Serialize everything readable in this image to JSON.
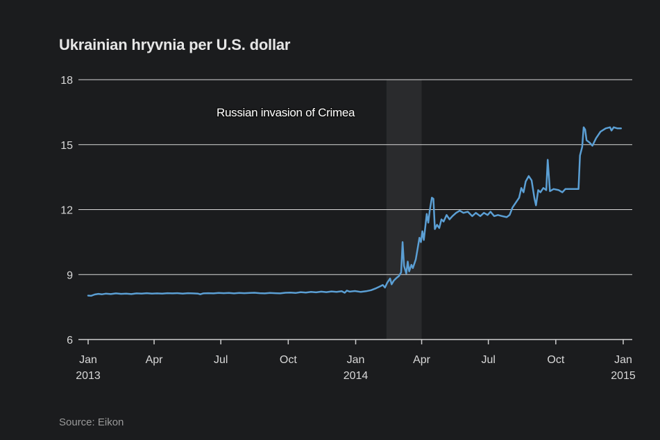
{
  "chart_data": {
    "type": "line",
    "title": "Ukrainian hryvnia per U.S. dollar",
    "source": "Source: Eikon",
    "ylim": [
      6,
      18
    ],
    "y_ticks": [
      {
        "value": 6,
        "label": "6"
      },
      {
        "value": 9,
        "label": "9"
      },
      {
        "value": 12,
        "label": "12"
      },
      {
        "value": 15,
        "label": "15"
      },
      {
        "value": 18,
        "label": "18"
      }
    ],
    "xlim": [
      "2013-01-01",
      "2015-01-01"
    ],
    "x_ticks": [
      {
        "date": "2013-01-01",
        "label": "Jan",
        "sublabel": "2013"
      },
      {
        "date": "2013-04-01",
        "label": "Apr",
        "sublabel": ""
      },
      {
        "date": "2013-07-01",
        "label": "Jul",
        "sublabel": ""
      },
      {
        "date": "2013-10-01",
        "label": "Oct",
        "sublabel": ""
      },
      {
        "date": "2014-01-01",
        "label": "Jan",
        "sublabel": "2014"
      },
      {
        "date": "2014-04-01",
        "label": "Apr",
        "sublabel": ""
      },
      {
        "date": "2014-07-01",
        "label": "Jul",
        "sublabel": ""
      },
      {
        "date": "2014-10-01",
        "label": "Oct",
        "sublabel": ""
      },
      {
        "date": "2015-01-01",
        "label": "Jan",
        "sublabel": "2015"
      }
    ],
    "grid": true,
    "line_color": "#5b9fd4",
    "annotation": {
      "label": "Russian invasion of Crimea",
      "start": "2014-02-12",
      "end": "2014-04-01",
      "band_color": "#2a2b2d"
    },
    "series": [
      {
        "points": [
          [
            "2013-01-01",
            8.03
          ],
          [
            "2013-01-05",
            8.02
          ],
          [
            "2013-01-10",
            8.08
          ],
          [
            "2013-01-15",
            8.11
          ],
          [
            "2013-01-20",
            8.09
          ],
          [
            "2013-01-25",
            8.12
          ],
          [
            "2013-02-01",
            8.1
          ],
          [
            "2013-02-08",
            8.13
          ],
          [
            "2013-02-15",
            8.11
          ],
          [
            "2013-02-22",
            8.12
          ],
          [
            "2013-03-01",
            8.1
          ],
          [
            "2013-03-08",
            8.13
          ],
          [
            "2013-03-15",
            8.12
          ],
          [
            "2013-03-22",
            8.14
          ],
          [
            "2013-03-29",
            8.12
          ],
          [
            "2013-04-05",
            8.13
          ],
          [
            "2013-04-12",
            8.12
          ],
          [
            "2013-04-19",
            8.14
          ],
          [
            "2013-04-26",
            8.13
          ],
          [
            "2013-05-03",
            8.14
          ],
          [
            "2013-05-10",
            8.12
          ],
          [
            "2013-05-17",
            8.14
          ],
          [
            "2013-05-24",
            8.13
          ],
          [
            "2013-05-31",
            8.12
          ],
          [
            "2013-06-03",
            8.09
          ],
          [
            "2013-06-07",
            8.13
          ],
          [
            "2013-06-14",
            8.14
          ],
          [
            "2013-06-21",
            8.13
          ],
          [
            "2013-06-28",
            8.15
          ],
          [
            "2013-07-05",
            8.14
          ],
          [
            "2013-07-12",
            8.15
          ],
          [
            "2013-07-19",
            8.13
          ],
          [
            "2013-07-26",
            8.15
          ],
          [
            "2013-08-02",
            8.14
          ],
          [
            "2013-08-09",
            8.15
          ],
          [
            "2013-08-16",
            8.16
          ],
          [
            "2013-08-23",
            8.14
          ],
          [
            "2013-08-30",
            8.13
          ],
          [
            "2013-09-06",
            8.15
          ],
          [
            "2013-09-13",
            8.14
          ],
          [
            "2013-09-20",
            8.13
          ],
          [
            "2013-09-27",
            8.16
          ],
          [
            "2013-10-04",
            8.17
          ],
          [
            "2013-10-11",
            8.15
          ],
          [
            "2013-10-18",
            8.19
          ],
          [
            "2013-10-25",
            8.17
          ],
          [
            "2013-11-01",
            8.2
          ],
          [
            "2013-11-08",
            8.18
          ],
          [
            "2013-11-15",
            8.21
          ],
          [
            "2013-11-22",
            8.19
          ],
          [
            "2013-11-29",
            8.22
          ],
          [
            "2013-12-06",
            8.2
          ],
          [
            "2013-12-13",
            8.23
          ],
          [
            "2013-12-17",
            8.16
          ],
          [
            "2013-12-20",
            8.26
          ],
          [
            "2013-12-24",
            8.21
          ],
          [
            "2013-12-31",
            8.24
          ],
          [
            "2014-01-08",
            8.2
          ],
          [
            "2014-01-15",
            8.23
          ],
          [
            "2014-01-22",
            8.28
          ],
          [
            "2014-01-29",
            8.37
          ],
          [
            "2014-02-03",
            8.45
          ],
          [
            "2014-02-07",
            8.52
          ],
          [
            "2014-02-10",
            8.4
          ],
          [
            "2014-02-13",
            8.62
          ],
          [
            "2014-02-17",
            8.82
          ],
          [
            "2014-02-19",
            8.55
          ],
          [
            "2014-02-22",
            8.72
          ],
          [
            "2014-02-26",
            8.85
          ],
          [
            "2014-03-01",
            8.93
          ],
          [
            "2014-03-04",
            9.1
          ],
          [
            "2014-03-06",
            10.5
          ],
          [
            "2014-03-08",
            9.4
          ],
          [
            "2014-03-11",
            9.05
          ],
          [
            "2014-03-13",
            9.6
          ],
          [
            "2014-03-15",
            9.15
          ],
          [
            "2014-03-18",
            9.45
          ],
          [
            "2014-03-20",
            9.3
          ],
          [
            "2014-03-24",
            9.7
          ],
          [
            "2014-03-27",
            10.3
          ],
          [
            "2014-03-29",
            10.7
          ],
          [
            "2014-03-31",
            10.5
          ],
          [
            "2014-04-02",
            11.0
          ],
          [
            "2014-04-04",
            10.6
          ],
          [
            "2014-04-06",
            11.2
          ],
          [
            "2014-04-08",
            11.8
          ],
          [
            "2014-04-10",
            11.4
          ],
          [
            "2014-04-12",
            11.95
          ],
          [
            "2014-04-15",
            12.55
          ],
          [
            "2014-04-17",
            12.5
          ],
          [
            "2014-04-19",
            11.1
          ],
          [
            "2014-04-22",
            11.3
          ],
          [
            "2014-04-25",
            11.15
          ],
          [
            "2014-04-28",
            11.55
          ],
          [
            "2014-05-01",
            11.45
          ],
          [
            "2014-05-05",
            11.75
          ],
          [
            "2014-05-09",
            11.55
          ],
          [
            "2014-05-13",
            11.7
          ],
          [
            "2014-05-18",
            11.85
          ],
          [
            "2014-05-23",
            11.95
          ],
          [
            "2014-05-28",
            11.85
          ],
          [
            "2014-06-03",
            11.9
          ],
          [
            "2014-06-09",
            11.7
          ],
          [
            "2014-06-14",
            11.85
          ],
          [
            "2014-06-20",
            11.7
          ],
          [
            "2014-06-25",
            11.85
          ],
          [
            "2014-06-30",
            11.75
          ],
          [
            "2014-07-04",
            11.9
          ],
          [
            "2014-07-09",
            11.7
          ],
          [
            "2014-07-14",
            11.75
          ],
          [
            "2014-07-20",
            11.7
          ],
          [
            "2014-07-26",
            11.65
          ],
          [
            "2014-07-30",
            11.75
          ],
          [
            "2014-08-03",
            12.1
          ],
          [
            "2014-08-08",
            12.35
          ],
          [
            "2014-08-12",
            12.55
          ],
          [
            "2014-08-15",
            13.0
          ],
          [
            "2014-08-18",
            12.8
          ],
          [
            "2014-08-21",
            13.3
          ],
          [
            "2014-08-25",
            13.55
          ],
          [
            "2014-08-29",
            13.35
          ],
          [
            "2014-09-02",
            12.5
          ],
          [
            "2014-09-04",
            12.2
          ],
          [
            "2014-09-07",
            12.9
          ],
          [
            "2014-09-10",
            12.8
          ],
          [
            "2014-09-14",
            13.0
          ],
          [
            "2014-09-18",
            12.9
          ],
          [
            "2014-09-20",
            14.3
          ],
          [
            "2014-09-23",
            12.85
          ],
          [
            "2014-09-28",
            12.95
          ],
          [
            "2014-10-05",
            12.9
          ],
          [
            "2014-10-10",
            12.8
          ],
          [
            "2014-10-14",
            12.95
          ],
          [
            "2014-10-20",
            12.95
          ],
          [
            "2014-10-27",
            12.95
          ],
          [
            "2014-11-01",
            12.95
          ],
          [
            "2014-11-03",
            14.5
          ],
          [
            "2014-11-06",
            14.9
          ],
          [
            "2014-11-08",
            15.8
          ],
          [
            "2014-11-10",
            15.7
          ],
          [
            "2014-11-12",
            15.2
          ],
          [
            "2014-11-16",
            15.1
          ],
          [
            "2014-11-20",
            14.95
          ],
          [
            "2014-11-25",
            15.3
          ],
          [
            "2014-12-01",
            15.6
          ],
          [
            "2014-12-08",
            15.75
          ],
          [
            "2014-12-14",
            15.8
          ],
          [
            "2014-12-16",
            15.65
          ],
          [
            "2014-12-19",
            15.8
          ],
          [
            "2014-12-24",
            15.75
          ],
          [
            "2014-12-29",
            15.75
          ]
        ]
      }
    ]
  }
}
